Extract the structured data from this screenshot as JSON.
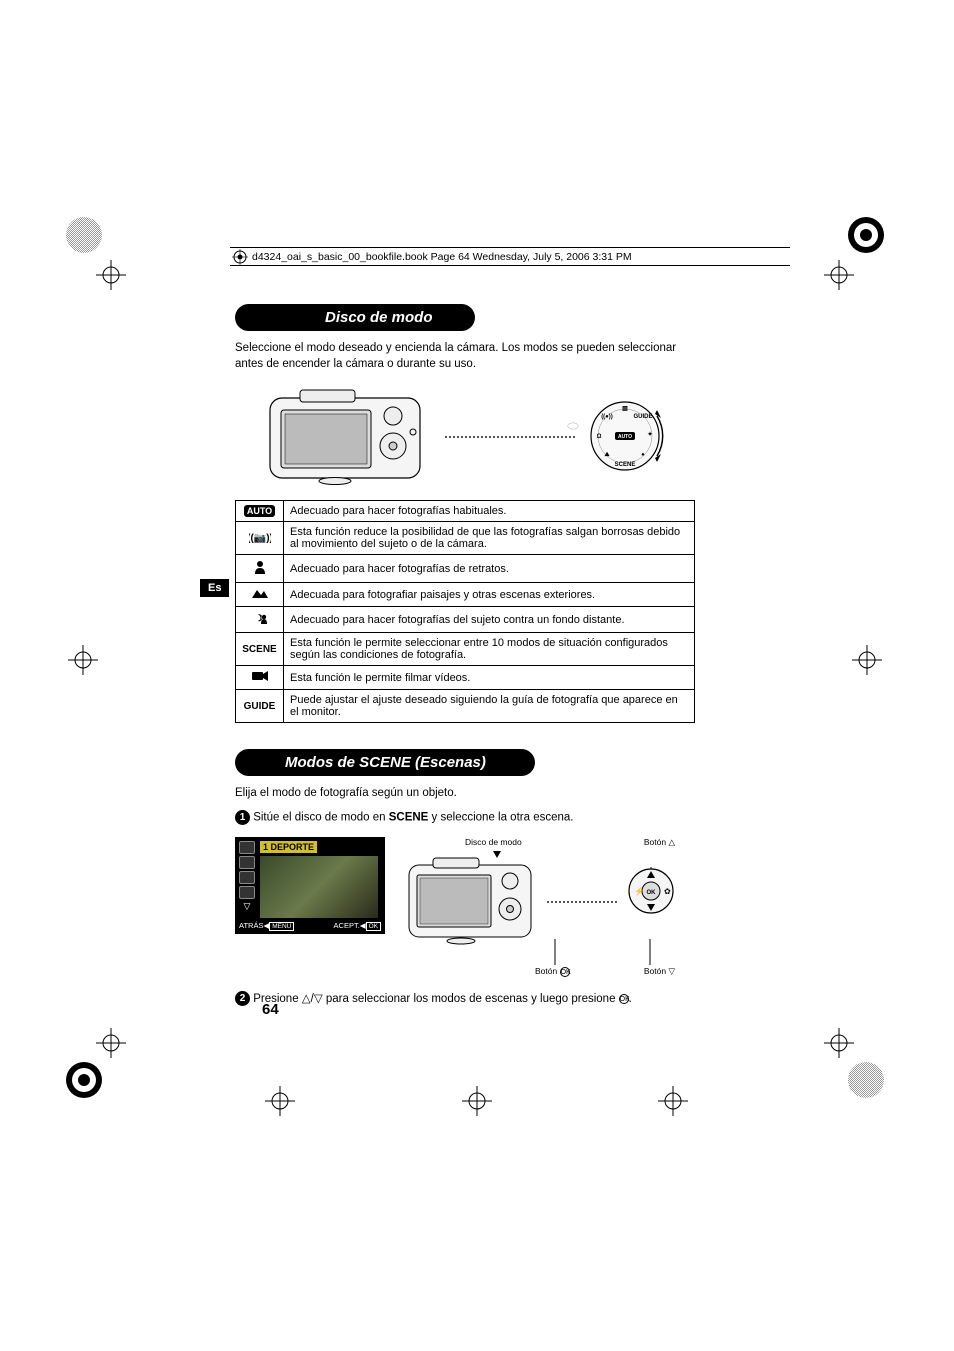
{
  "bookfile_header": "d4324_oai_s_basic_00_bookfile.book  Page 64  Wednesday, July 5, 2006  3:31 PM",
  "section1": {
    "title": "Disco de modo",
    "intro": "Seleccione el modo deseado y encienda la cámara. Los modos se pueden seleccionar antes de encender la cámara o durante su uso."
  },
  "mode_table": {
    "rows": [
      {
        "icon_type": "badge",
        "icon": "AUTO",
        "desc": "Adecuado para hacer fotografías habituales."
      },
      {
        "icon_type": "svg",
        "icon": "stabilize",
        "desc": "Esta función reduce la posibilidad de que las fotografías salgan borrosas debido al movimiento del sujeto o de la cámara."
      },
      {
        "icon_type": "svg",
        "icon": "portrait",
        "desc": "Adecuado para hacer fotografías de retratos."
      },
      {
        "icon_type": "svg",
        "icon": "landscape",
        "desc": "Adecuada para fotografiar paisajes y otras escenas exteriores."
      },
      {
        "icon_type": "svg",
        "icon": "night-portrait",
        "desc": "Adecuado para hacer fotografías del sujeto contra un fondo distante."
      },
      {
        "icon_type": "text",
        "icon": "SCENE",
        "desc": "Esta función le permite seleccionar entre 10 modos de situación configurados según las condiciones de fotografía."
      },
      {
        "icon_type": "svg",
        "icon": "movie",
        "desc": "Esta función le permite filmar vídeos."
      },
      {
        "icon_type": "text",
        "icon": "GUIDE",
        "desc": "Puede ajustar el ajuste deseado siguiendo la guía de fotografía que aparece en el monitor."
      }
    ]
  },
  "section2": {
    "title": "Modos de SCENE (Escenas)",
    "intro": "Elija el modo de fotografía según un objeto.",
    "step1_pre": "Sitúe el disco de modo en ",
    "step1_scene": "SCENE",
    "step1_post": " y seleccione la otra escena.",
    "step2_pre": "Presione ",
    "step2_mid": " para seleccionar los modos de escenas y luego presione ",
    "step2_post": "."
  },
  "lcd": {
    "title": "1  DEPORTE",
    "back_label": "ATRÁS",
    "back_btn": "MENU",
    "accept_label": "ACEPT.",
    "accept_btn": "OK"
  },
  "camera2_labels": {
    "disco": "Disco de modo",
    "boton_up": "Botón △",
    "boton_ok": "Botón ⊛",
    "boton_down": "Botón ▽"
  },
  "es_tag": "Es",
  "page_number": "64",
  "colors": {
    "black": "#000000",
    "white": "#ffffff",
    "lcd_title_bg": "#d0c030",
    "dotted": "#555555"
  }
}
